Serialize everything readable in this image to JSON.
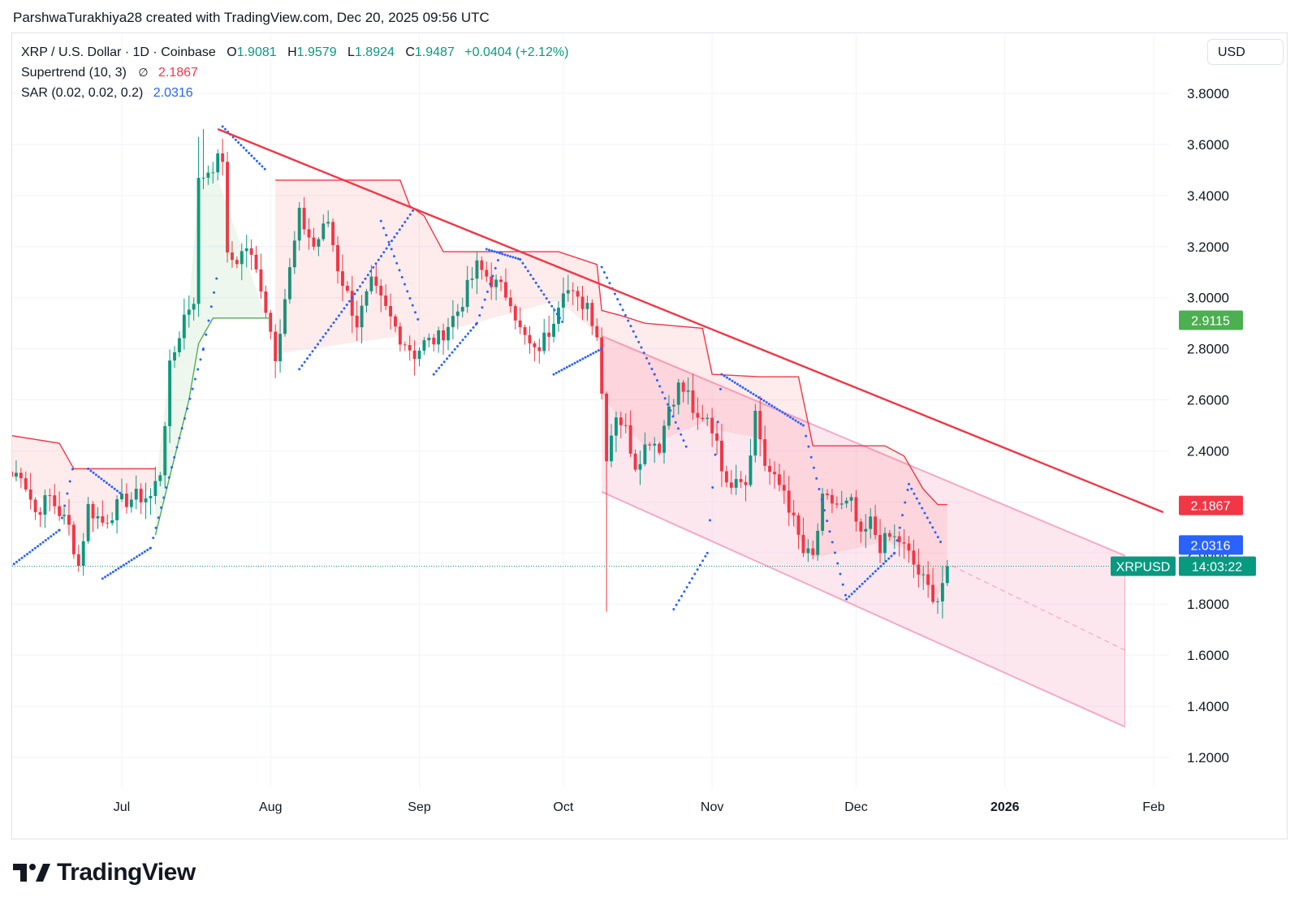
{
  "header": {
    "credit": "ParshwaTurakhiya28 created with TradingView.com, Dec 20, 2025 09:56 UTC"
  },
  "legend": {
    "symbol": "XRP / U.S. Dollar · 1D · Coinbase",
    "o_label": "O",
    "o_value": "1.9081",
    "h_label": "H",
    "h_value": "1.9579",
    "l_label": "L",
    "l_value": "1.8924",
    "c_label": "C",
    "c_value": "1.9487",
    "change": "+0.0404 (+2.12%)",
    "supertrend_label": "Supertrend (10, 3)",
    "supertrend_na": "∅",
    "supertrend_value": "2.1867",
    "sar_label": "SAR (0.02, 0.02, 0.2)",
    "sar_value": "2.0316"
  },
  "currency": "USD",
  "brand": {
    "name": "TradingView",
    "logo_icon": "tradingview-logo-icon"
  },
  "colors": {
    "up": "#089981",
    "down": "#f23645",
    "sar": "#2962ff",
    "supertrend_up": "#4caf50",
    "supertrend_down": "#f23645",
    "trendline": "#f23645",
    "channel": "#f7a8c4"
  },
  "chart_data": {
    "type": "candlestick",
    "symbol": "XRPUSD",
    "title": "XRP / U.S. Dollar · 1D · Coinbase",
    "ylim": [
      1.1,
      3.95
    ],
    "x_range": [
      "2025-06-08",
      "2026-02-10"
    ],
    "y_ticks": [
      "3.8000",
      "3.6000",
      "3.4000",
      "3.2000",
      "3.0000",
      "2.8000",
      "2.6000",
      "2.4000",
      "2.2000",
      "2.0000",
      "1.8000",
      "1.6000",
      "1.4000",
      "1.2000"
    ],
    "x_ticks": [
      {
        "date": "2025-07-01",
        "label": "Jul"
      },
      {
        "date": "2025-08-01",
        "label": "Aug"
      },
      {
        "date": "2025-09-01",
        "label": "Sep"
      },
      {
        "date": "2025-10-01",
        "label": "Oct"
      },
      {
        "date": "2025-11-01",
        "label": "Nov"
      },
      {
        "date": "2025-12-01",
        "label": "Dec"
      },
      {
        "date": "2026-01-01",
        "label": "2026",
        "bold": true
      },
      {
        "date": "2026-02-01",
        "label": "Feb"
      }
    ],
    "price_labels": [
      {
        "value": 2.9115,
        "text": "2.9115",
        "color": "#4caf50"
      },
      {
        "value": 2.1867,
        "text": "2.1867",
        "color": "#f23645"
      },
      {
        "value": 2.0316,
        "text": "2.0316",
        "color": "#2962ff"
      },
      {
        "value": 1.9487,
        "text": "14:03:22",
        "symbol": "XRPUSD",
        "color": "#089981"
      }
    ],
    "last_close": 1.9487,
    "anchors": [
      [
        "2025-06-08",
        2.3
      ],
      [
        "2025-06-10",
        2.32
      ],
      [
        "2025-06-13",
        2.16
      ],
      [
        "2025-06-16",
        2.22
      ],
      [
        "2025-06-20",
        2.1
      ],
      [
        "2025-06-22",
        1.95
      ],
      [
        "2025-06-24",
        2.18
      ],
      [
        "2025-06-27",
        2.12
      ],
      [
        "2025-07-01",
        2.2
      ],
      [
        "2025-07-04",
        2.22
      ],
      [
        "2025-07-07",
        2.22
      ],
      [
        "2025-07-09",
        2.32
      ],
      [
        "2025-07-11",
        2.72
      ],
      [
        "2025-07-14",
        2.93
      ],
      [
        "2025-07-16",
        3.0
      ],
      [
        "2025-07-17",
        3.45
      ],
      [
        "2025-07-18",
        3.48
      ],
      [
        "2025-07-20",
        3.52
      ],
      [
        "2025-07-22",
        3.55
      ],
      [
        "2025-07-23",
        3.15
      ],
      [
        "2025-07-25",
        3.15
      ],
      [
        "2025-07-27",
        3.2
      ],
      [
        "2025-07-30",
        3.05
      ],
      [
        "2025-08-02",
        2.78
      ],
      [
        "2025-08-04",
        3.0
      ],
      [
        "2025-08-07",
        3.32
      ],
      [
        "2025-08-10",
        3.2
      ],
      [
        "2025-08-13",
        3.3
      ],
      [
        "2025-08-15",
        3.12
      ],
      [
        "2025-08-19",
        2.9
      ],
      [
        "2025-08-22",
        3.05
      ],
      [
        "2025-08-25",
        2.95
      ],
      [
        "2025-08-28",
        2.85
      ],
      [
        "2025-08-31",
        2.78
      ],
      [
        "2025-09-02",
        2.82
      ],
      [
        "2025-09-05",
        2.84
      ],
      [
        "2025-09-09",
        2.95
      ],
      [
        "2025-09-13",
        3.12
      ],
      [
        "2025-09-17",
        3.05
      ],
      [
        "2025-09-20",
        3.0
      ],
      [
        "2025-09-22",
        2.87
      ],
      [
        "2025-09-25",
        2.78
      ],
      [
        "2025-09-28",
        2.87
      ],
      [
        "2025-10-01",
        3.05
      ],
      [
        "2025-10-04",
        2.98
      ],
      [
        "2025-10-06",
        2.98
      ],
      [
        "2025-10-08",
        2.86
      ],
      [
        "2025-10-10",
        2.39
      ],
      [
        "2025-10-12",
        2.55
      ],
      [
        "2025-10-14",
        2.48
      ],
      [
        "2025-10-16",
        2.35
      ],
      [
        "2025-10-19",
        2.45
      ],
      [
        "2025-10-21",
        2.42
      ],
      [
        "2025-10-23",
        2.58
      ],
      [
        "2025-10-25",
        2.65
      ],
      [
        "2025-10-27",
        2.62
      ],
      [
        "2025-10-29",
        2.5
      ],
      [
        "2025-10-31",
        2.52
      ],
      [
        "2025-11-02",
        2.45
      ],
      [
        "2025-11-04",
        2.25
      ],
      [
        "2025-11-06",
        2.32
      ],
      [
        "2025-11-08",
        2.28
      ],
      [
        "2025-11-10",
        2.55
      ],
      [
        "2025-11-12",
        2.35
      ],
      [
        "2025-11-14",
        2.28
      ],
      [
        "2025-11-16",
        2.25
      ],
      [
        "2025-11-18",
        2.12
      ],
      [
        "2025-11-20",
        2.0
      ],
      [
        "2025-11-22",
        1.98
      ],
      [
        "2025-11-24",
        2.2
      ],
      [
        "2025-11-26",
        2.2
      ],
      [
        "2025-11-28",
        2.18
      ],
      [
        "2025-11-30",
        2.19
      ],
      [
        "2025-12-02",
        2.05
      ],
      [
        "2025-12-04",
        2.12
      ],
      [
        "2025-12-06",
        2.03
      ],
      [
        "2025-12-08",
        2.06
      ],
      [
        "2025-12-10",
        2.05
      ],
      [
        "2025-12-12",
        1.99
      ],
      [
        "2025-12-14",
        1.92
      ],
      [
        "2025-12-16",
        1.86
      ],
      [
        "2025-12-18",
        1.82
      ],
      [
        "2025-12-20",
        1.95
      ]
    ],
    "supertrend": [
      {
        "trend": "down",
        "points": [
          [
            "2025-06-08",
            2.46
          ],
          [
            "2025-06-18",
            2.43
          ],
          [
            "2025-06-21",
            2.33
          ],
          [
            "2025-07-08",
            2.33
          ]
        ]
      },
      {
        "trend": "up",
        "points": [
          [
            "2025-07-08",
            2.07
          ],
          [
            "2025-07-11",
            2.3
          ],
          [
            "2025-07-15",
            2.6
          ],
          [
            "2025-07-17",
            2.82
          ],
          [
            "2025-07-20",
            2.92
          ],
          [
            "2025-08-01",
            2.92
          ]
        ]
      },
      {
        "trend": "down",
        "points": [
          [
            "2025-08-02",
            3.46
          ],
          [
            "2025-08-28",
            3.46
          ],
          [
            "2025-08-30",
            3.36
          ],
          [
            "2025-09-02",
            3.32
          ],
          [
            "2025-09-06",
            3.18
          ],
          [
            "2025-09-30",
            3.18
          ],
          [
            "2025-10-08",
            3.13
          ],
          [
            "2025-10-09",
            2.95
          ],
          [
            "2025-10-13",
            2.93
          ],
          [
            "2025-10-18",
            2.9
          ],
          [
            "2025-10-30",
            2.88
          ],
          [
            "2025-11-01",
            2.7
          ],
          [
            "2025-11-11",
            2.69
          ],
          [
            "2025-11-19",
            2.69
          ],
          [
            "2025-11-22",
            2.42
          ],
          [
            "2025-12-07",
            2.42
          ],
          [
            "2025-12-11",
            2.38
          ],
          [
            "2025-12-15",
            2.25
          ],
          [
            "2025-12-18",
            2.19
          ],
          [
            "2025-12-20",
            2.19
          ]
        ]
      }
    ],
    "sar_segments": [
      [
        [
          "2025-06-08",
          1.95
        ],
        [
          "2025-06-18",
          2.09
        ],
        [
          "2025-06-21",
          2.35
        ]
      ],
      [
        [
          "2025-06-24",
          2.33
        ],
        [
          "2025-07-01",
          2.23
        ]
      ],
      [
        [
          "2025-06-27",
          1.9
        ],
        [
          "2025-07-07",
          2.02
        ],
        [
          "2025-07-13",
          2.45
        ],
        [
          "2025-07-18",
          2.8
        ],
        [
          "2025-07-21",
          3.1
        ]
      ],
      [
        [
          "2025-07-22",
          3.67
        ],
        [
          "2025-07-31",
          3.5
        ]
      ],
      [
        [
          "2025-08-07",
          2.72
        ],
        [
          "2025-08-18",
          3.0
        ],
        [
          "2025-08-31",
          3.35
        ]
      ],
      [
        [
          "2025-08-24",
          3.3
        ],
        [
          "2025-09-01",
          2.9
        ]
      ],
      [
        [
          "2025-09-04",
          2.7
        ],
        [
          "2025-09-13",
          2.9
        ],
        [
          "2025-09-18",
          3.18
        ]
      ],
      [
        [
          "2025-09-15",
          3.19
        ],
        [
          "2025-09-22",
          3.15
        ],
        [
          "2025-10-01",
          2.9
        ]
      ],
      [
        [
          "2025-09-29",
          2.7
        ],
        [
          "2025-10-09",
          2.8
        ]
      ],
      [
        [
          "2025-10-09",
          3.12
        ],
        [
          "2025-10-20",
          2.7
        ],
        [
          "2025-10-27",
          2.4
        ]
      ],
      [
        [
          "2025-10-24",
          1.78
        ],
        [
          "2025-10-31",
          2.0
        ],
        [
          "2025-11-03",
          2.7
        ]
      ],
      [
        [
          "2025-11-03",
          2.7
        ],
        [
          "2025-11-20",
          2.5
        ],
        [
          "2025-11-29",
          1.82
        ]
      ],
      [
        [
          "2025-11-29",
          1.82
        ],
        [
          "2025-12-09",
          2.0
        ],
        [
          "2025-12-12",
          2.27
        ]
      ],
      [
        [
          "2025-12-12",
          2.27
        ],
        [
          "2025-12-19",
          2.03
        ]
      ]
    ],
    "trendline": [
      [
        "2025-07-21",
        3.66
      ],
      [
        "2026-02-03",
        2.16
      ]
    ],
    "channel": {
      "upper": [
        [
          "2025-10-09",
          2.85
        ],
        [
          "2026-01-26",
          1.99
        ]
      ],
      "lower": [
        [
          "2025-10-09",
          2.24
        ],
        [
          "2026-01-26",
          1.32
        ]
      ],
      "mid_start": [
        "2025-12-21",
        1.95
      ],
      "mid_end": [
        "2026-01-26",
        1.62
      ]
    },
    "drawn_extent": "2025-12-20"
  }
}
